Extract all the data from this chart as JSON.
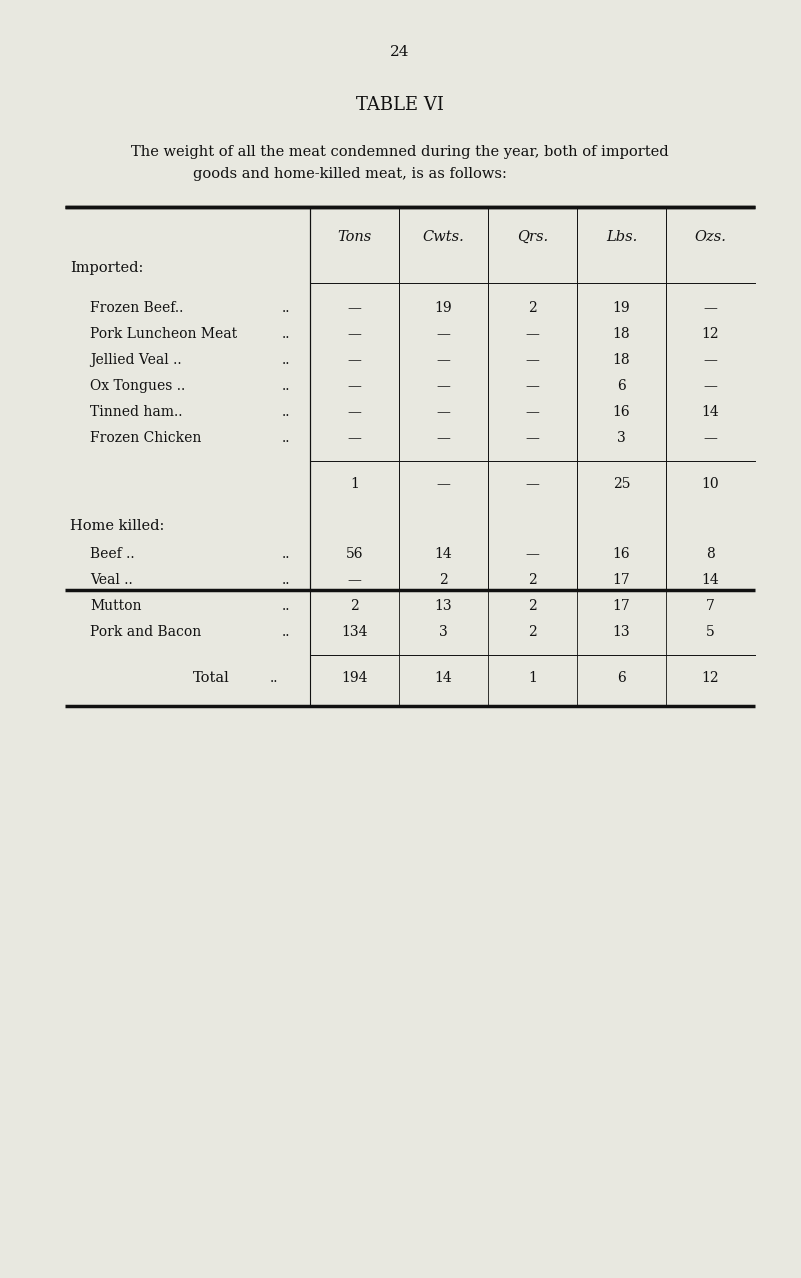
{
  "page_number": "24",
  "title": "TABLE VI",
  "subtitle_line1": "The weight of all the meat condemned during the year, both of imported",
  "subtitle_line2": "goods and home-killed meat, is as follows:",
  "background_color": "#e8e8e0",
  "text_color": "#111111",
  "col_headers": [
    "Tons",
    "Cwts.",
    "Qrs.",
    "Lbs.",
    "Ozs."
  ],
  "imported_label": "Imported:",
  "imported_rows": [
    {
      "label": "Frozen Beef..",
      "extra": "..",
      "tons": "—",
      "cwts": "19",
      "qrs": "2",
      "lbs": "19",
      "ozs": "—"
    },
    {
      "label": "Pork Luncheon Meat",
      "extra": "..",
      "tons": "—",
      "cwts": "—",
      "qrs": "—",
      "lbs": "18",
      "ozs": "12"
    },
    {
      "label": "Jellied Veal ..",
      "extra": "..",
      "tons": "—",
      "cwts": "—",
      "qrs": "—",
      "lbs": "18",
      "ozs": "—"
    },
    {
      "label": "Ox Tongues ..",
      "extra": "..",
      "tons": "—",
      "cwts": "—",
      "qrs": "—",
      "lbs": "6",
      "ozs": "—"
    },
    {
      "label": "Tinned ham..",
      "extra": "..",
      "tons": "—",
      "cwts": "—",
      "qrs": "—",
      "lbs": "16",
      "ozs": "14"
    },
    {
      "label": "Frozen Chicken",
      "extra": "..",
      "tons": "—",
      "cwts": "—",
      "qrs": "—",
      "lbs": "3",
      "ozs": "—"
    }
  ],
  "imported_subtotal": {
    "tons": "1",
    "cwts": "—",
    "qrs": "—",
    "lbs": "25",
    "ozs": "10"
  },
  "homekilled_label": "Home killed:",
  "homekilled_rows": [
    {
      "label": "Beef ..",
      "extra": "..",
      "tons": "56",
      "cwts": "14",
      "qrs": "—",
      "lbs": "16",
      "ozs": "8"
    },
    {
      "label": "Veal ..",
      "extra": "..",
      "tons": "—",
      "cwts": "2",
      "qrs": "2",
      "lbs": "17",
      "ozs": "14"
    },
    {
      "label": "Mutton",
      "extra": "..",
      "tons": "2",
      "cwts": "13",
      "qrs": "2",
      "lbs": "17",
      "ozs": "7"
    },
    {
      "label": "Pork and Bacon",
      "extra": "..",
      "tons": "134",
      "cwts": "3",
      "qrs": "2",
      "lbs": "13",
      "ozs": "5"
    }
  ],
  "total_row": {
    "label": "Total",
    "tons": "194",
    "cwts": "14",
    "qrs": "1",
    "lbs": "6",
    "ozs": "12"
  }
}
